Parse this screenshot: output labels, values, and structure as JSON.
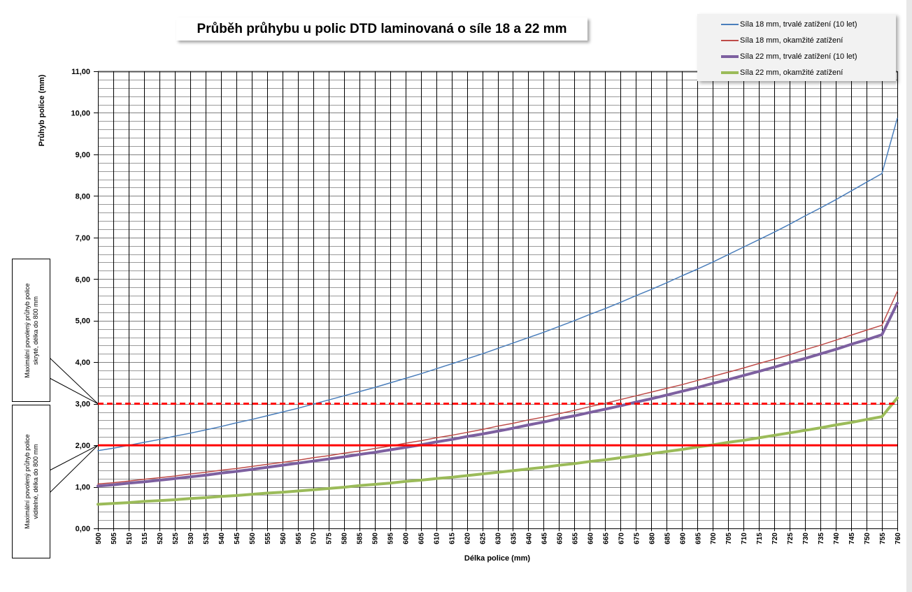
{
  "chart_data": {
    "type": "line",
    "title": "Průběh průhybu u polic DTD laminovaná o síle 18 a 22 mm",
    "xlabel": "Délka police (mm)",
    "ylabel": "Průhyb police (mm)",
    "x": [
      500,
      505,
      510,
      515,
      520,
      525,
      530,
      535,
      540,
      545,
      550,
      555,
      560,
      565,
      570,
      575,
      580,
      585,
      590,
      595,
      600,
      605,
      610,
      615,
      620,
      625,
      630,
      635,
      640,
      645,
      650,
      655,
      660,
      665,
      670,
      675,
      680,
      685,
      690,
      695,
      700,
      705,
      710,
      715,
      720,
      725,
      730,
      735,
      740,
      745,
      750,
      755,
      760
    ],
    "xlim": [
      500,
      760
    ],
    "ylim": [
      0,
      11
    ],
    "y_ticks": [
      "0,00",
      "1,00",
      "2,00",
      "3,00",
      "4,00",
      "5,00",
      "6,00",
      "7,00",
      "8,00",
      "9,00",
      "10,00",
      "11,00"
    ],
    "grid": true,
    "legend_position": "top-right",
    "series": [
      {
        "name": "Síla 18 mm, trvalé zatížení (10 let)",
        "color": "#4a7ebb",
        "values": [
          1.87,
          1.93,
          2.0,
          2.07,
          2.14,
          2.22,
          2.29,
          2.37,
          2.45,
          2.54,
          2.62,
          2.71,
          2.8,
          2.89,
          2.99,
          3.09,
          3.19,
          3.29,
          3.39,
          3.5,
          3.61,
          3.72,
          3.84,
          3.96,
          4.08,
          4.2,
          4.33,
          4.46,
          4.59,
          4.72,
          4.86,
          5.0,
          5.15,
          5.29,
          5.44,
          5.6,
          5.75,
          5.91,
          6.08,
          6.24,
          6.41,
          6.59,
          6.77,
          6.95,
          7.13,
          7.32,
          7.52,
          7.71,
          7.91,
          8.12,
          8.33,
          8.54,
          9.87
        ]
      },
      {
        "name": "Síla 18 mm, okamžité zatížení",
        "color": "#be4b48",
        "values": [
          1.07,
          1.1,
          1.14,
          1.18,
          1.22,
          1.26,
          1.31,
          1.35,
          1.4,
          1.44,
          1.49,
          1.54,
          1.59,
          1.64,
          1.7,
          1.75,
          1.81,
          1.86,
          1.92,
          1.98,
          2.05,
          2.11,
          2.18,
          2.24,
          2.31,
          2.38,
          2.46,
          2.53,
          2.61,
          2.68,
          2.76,
          2.84,
          2.93,
          3.01,
          3.1,
          3.19,
          3.28,
          3.37,
          3.46,
          3.56,
          3.66,
          3.76,
          3.86,
          3.97,
          4.07,
          4.18,
          4.3,
          4.41,
          4.53,
          4.65,
          4.77,
          4.89,
          5.7
        ]
      },
      {
        "name": "Síla 22 mm, trvalé zatížení (10 let)",
        "color": "#7d60a0",
        "values": [
          1.02,
          1.05,
          1.09,
          1.12,
          1.16,
          1.2,
          1.24,
          1.28,
          1.33,
          1.37,
          1.42,
          1.47,
          1.52,
          1.57,
          1.62,
          1.67,
          1.72,
          1.78,
          1.83,
          1.89,
          1.95,
          2.01,
          2.08,
          2.14,
          2.21,
          2.27,
          2.34,
          2.41,
          2.49,
          2.56,
          2.64,
          2.71,
          2.79,
          2.87,
          2.95,
          3.04,
          3.12,
          3.21,
          3.3,
          3.39,
          3.49,
          3.58,
          3.68,
          3.78,
          3.88,
          3.99,
          4.09,
          4.2,
          4.31,
          4.43,
          4.54,
          4.66,
          5.42
        ]
      },
      {
        "name": "Síla 22 mm, okamžité zatížení",
        "color": "#9bbb59",
        "values": [
          0.58,
          0.6,
          0.62,
          0.65,
          0.67,
          0.69,
          0.72,
          0.74,
          0.77,
          0.79,
          0.82,
          0.85,
          0.87,
          0.9,
          0.93,
          0.96,
          0.99,
          1.03,
          1.06,
          1.09,
          1.13,
          1.16,
          1.2,
          1.23,
          1.27,
          1.31,
          1.35,
          1.39,
          1.43,
          1.47,
          1.52,
          1.56,
          1.61,
          1.65,
          1.7,
          1.75,
          1.8,
          1.85,
          1.9,
          1.96,
          2.01,
          2.07,
          2.12,
          2.18,
          2.24,
          2.3,
          2.36,
          2.42,
          2.49,
          2.55,
          2.62,
          2.69,
          3.14
        ]
      }
    ],
    "reference_lines": [
      {
        "value": 3.0,
        "style": "dashed",
        "color": "#ff0000"
      },
      {
        "value": 2.0,
        "style": "solid",
        "color": "#ff0000"
      }
    ],
    "annotations": [
      {
        "text": "Maximální povolený průhyb police skryté, délka do 800 mm",
        "points_to": 3.0
      },
      {
        "text": "Maximální povolený průhyb police viditelné, délka do 800 mm",
        "points_to": 2.0
      }
    ]
  }
}
